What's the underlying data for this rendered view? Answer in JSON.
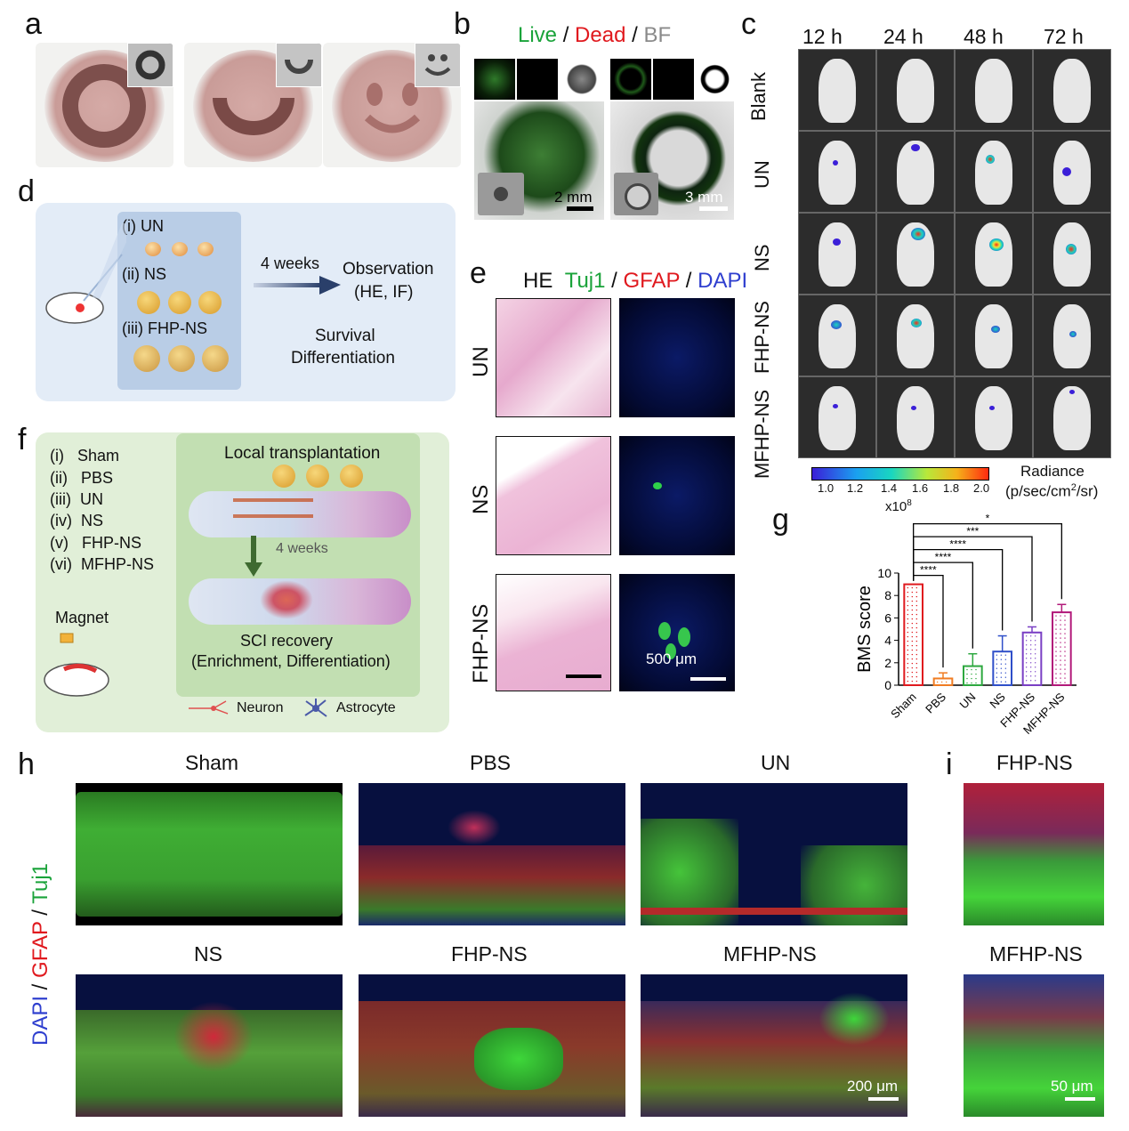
{
  "panel_letters": {
    "a": "a",
    "b": "b",
    "c": "c",
    "d": "d",
    "e": "e",
    "f": "f",
    "g": "g",
    "h": "h",
    "i": "i"
  },
  "panel_b": {
    "live": "Live",
    "sep1": " / ",
    "dead": "Dead",
    "sep2": " / ",
    "bf": "BF",
    "scale_left": "2 mm",
    "scale_right": "3 mm"
  },
  "panel_c": {
    "timepoints": [
      "12 h",
      "24 h",
      "48 h",
      "72 h"
    ],
    "groups": [
      "Blank",
      "UN",
      "NS",
      "FHP-NS",
      "MFHP-NS"
    ],
    "colorbar": {
      "ticks": [
        "1.0",
        "1.2",
        "1.4",
        "1.6",
        "1.8",
        "2.0"
      ],
      "exponent": "x10",
      "exponent_sup": "8",
      "title": "Radiance",
      "unit_a": "(p/sec/cm",
      "unit_sup": "2",
      "unit_b": "/sr)"
    },
    "colors": {
      "low": "#3b1fd8",
      "mid": "#19d6c0",
      "high": "#ff2a10"
    }
  },
  "panel_d": {
    "groups": [
      "(i) UN",
      "(ii) NS",
      "(iii) FHP-NS"
    ],
    "duration": "4 weeks",
    "observation": "Observation",
    "methods": "(HE, IF)",
    "survival": "Survival",
    "differentiation": "Differentiation"
  },
  "panel_e": {
    "header_he": "HE",
    "header_tuj1": "Tuj1",
    "sep": " / ",
    "header_gfap": "GFAP",
    "header_dapi": "DAPI",
    "rows": [
      "UN",
      "NS",
      "FHP-NS"
    ],
    "scale": "500 μm"
  },
  "panel_f": {
    "groups": [
      "(i)   Sham",
      "(ii)   PBS",
      "(iii)  UN",
      "(iv)  NS",
      "(v)   FHP-NS",
      "(vi)  MFHP-NS"
    ],
    "local": "Local transplantation",
    "duration": "4 weeks",
    "magnet": "Magnet",
    "recovery": "SCI recovery",
    "recovery_sub": "(Enrichment, Differentiation)",
    "legend_neuron": "Neuron",
    "legend_astrocyte": "Astrocyte"
  },
  "chart_data": {
    "type": "bar",
    "categories": [
      "Sham",
      "PBS",
      "UN",
      "NS",
      "FHP-NS",
      "MFHP-NS"
    ],
    "values": [
      9.0,
      0.6,
      1.7,
      3.0,
      4.7,
      6.5
    ],
    "errors": [
      0,
      0.5,
      1.1,
      1.4,
      0.5,
      0.7
    ],
    "ylabel": "BMS score",
    "ylim": [
      0,
      10
    ],
    "yticks": [
      0,
      2,
      4,
      6,
      8,
      10
    ],
    "significance": [
      {
        "from": "Sham",
        "to": "PBS",
        "label": "****"
      },
      {
        "from": "Sham",
        "to": "UN",
        "label": "****"
      },
      {
        "from": "Sham",
        "to": "NS",
        "label": "****"
      },
      {
        "from": "Sham",
        "to": "FHP-NS",
        "label": "***"
      },
      {
        "from": "Sham",
        "to": "MFHP-NS",
        "label": "*"
      }
    ],
    "colors": [
      "#e0191e",
      "#f07c22",
      "#2da83f",
      "#2f4fc9",
      "#7a3fc4",
      "#b2197a"
    ],
    "grid": false
  },
  "panel_h": {
    "titles": [
      "Sham",
      "PBS",
      "UN",
      "NS",
      "FHP-NS",
      "MFHP-NS"
    ],
    "side_dapi": "DAPI",
    "side_sep": " / ",
    "side_gfap": "GFAP",
    "side_tuj1": "Tuj1",
    "scale": "200 μm"
  },
  "panel_i": {
    "titles": [
      "FHP-NS",
      "MFHP-NS"
    ],
    "scale": "50 μm"
  }
}
